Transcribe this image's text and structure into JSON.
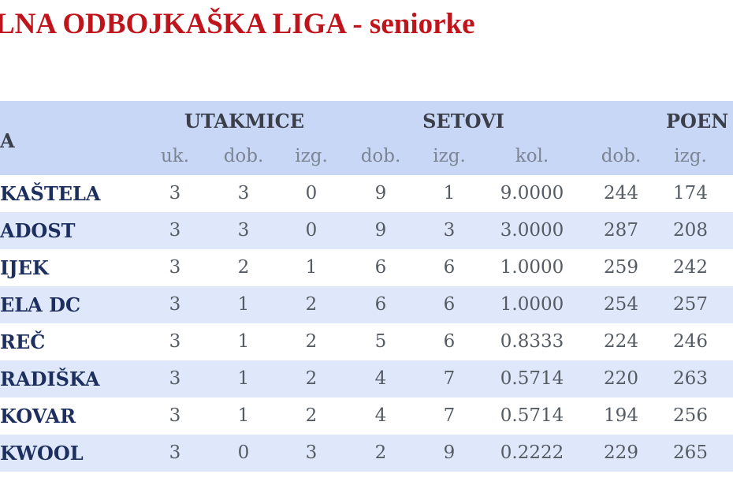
{
  "title": "LNA ODBOJKAŠKA LIGA - seniorke",
  "table": {
    "groups": [
      "A",
      "UTAKMICE",
      "SETOVI",
      "POEN"
    ],
    "columns": [
      "uk.",
      "dob.",
      "izg.",
      "dob.",
      "izg.",
      "kol.",
      "dob.",
      "izg."
    ],
    "rows": [
      [
        "KAŠTELA",
        3,
        3,
        0,
        9,
        1,
        "9.0000",
        244,
        174
      ],
      [
        "ADOST",
        3,
        3,
        0,
        9,
        3,
        "3.0000",
        287,
        208
      ],
      [
        "IJEK",
        3,
        2,
        1,
        6,
        6,
        "1.0000",
        259,
        242
      ],
      [
        "ELA DC",
        3,
        1,
        2,
        6,
        6,
        "1.0000",
        254,
        257
      ],
      [
        "REČ",
        3,
        1,
        2,
        5,
        6,
        "0.8333",
        224,
        246
      ],
      [
        "RADIŠKA",
        3,
        1,
        2,
        4,
        7,
        "0.5714",
        220,
        263
      ],
      [
        "KOVAR",
        3,
        1,
        2,
        4,
        7,
        "0.5714",
        194,
        256
      ],
      [
        "KWOOL",
        3,
        0,
        3,
        2,
        9,
        "0.2222",
        229,
        265
      ]
    ]
  }
}
